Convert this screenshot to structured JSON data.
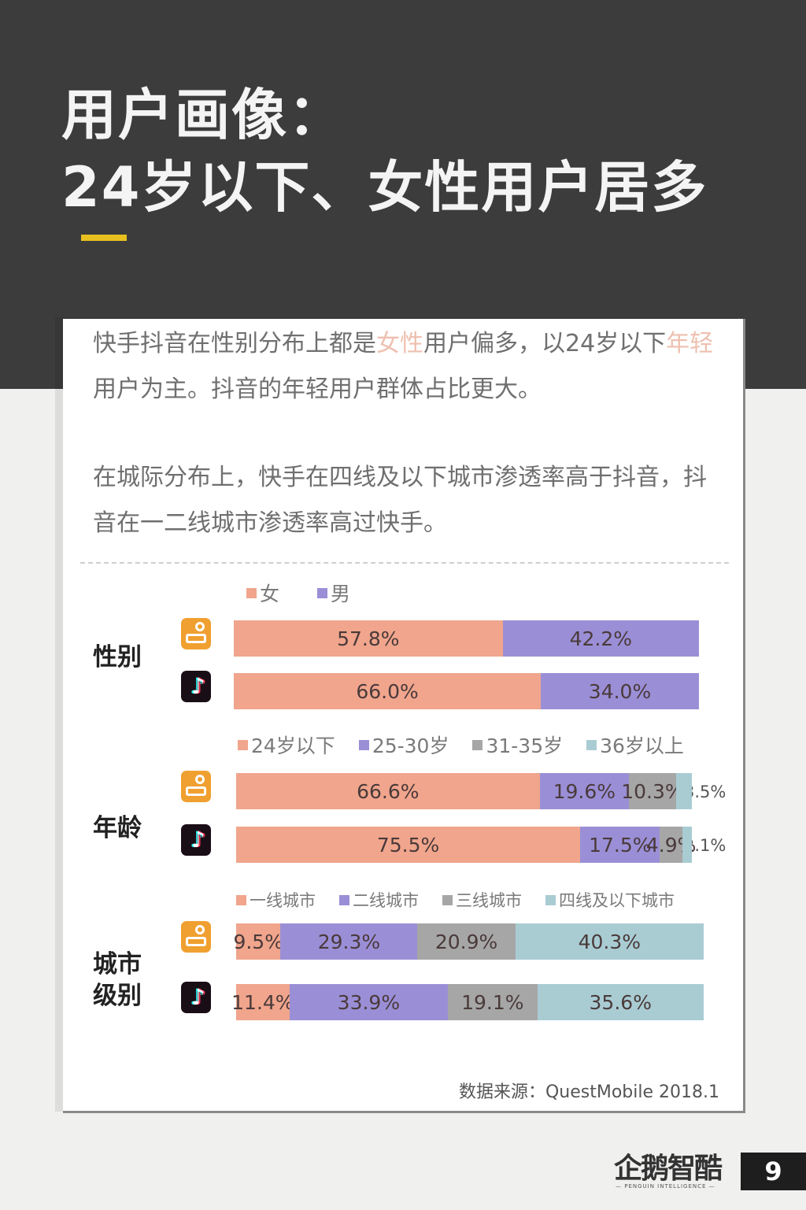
{
  "header": {
    "title_line1": "用户画像：",
    "title_line2": "24岁以下、女性用户居多",
    "accent_color": "#e8c020"
  },
  "summary": {
    "para1": [
      {
        "text": "快手抖音在性别分布上都是",
        "highlight": false
      },
      {
        "text": "女性",
        "highlight": true
      },
      {
        "text": "用户偏多，以24岁以下",
        "highlight": false
      },
      {
        "text": "年轻",
        "highlight": true
      },
      {
        "text": "用户为主。抖音的年轻用户群体占比更大。",
        "highlight": false
      }
    ],
    "para2": "在城际分布上，快手在四线及以下城市渗透率高于抖音，抖音在一二线城市渗透率高过快手。"
  },
  "apps": {
    "kuaishou": "快手",
    "douyin": "抖音"
  },
  "chart_data": [
    {
      "type": "bar",
      "stacked": true,
      "orientation": "horizontal",
      "title": "性别",
      "categories": [
        "快手",
        "抖音"
      ],
      "legend": [
        "女",
        "男"
      ],
      "colors": [
        "#f0a58c",
        "#9a8fd6"
      ],
      "series": [
        {
          "name": "女",
          "values": [
            57.8,
            66.0
          ],
          "labels": [
            "57.8%",
            "66.0%"
          ]
        },
        {
          "name": "男",
          "values": [
            42.2,
            34.0
          ],
          "labels": [
            "42.2%",
            "34.0%"
          ]
        }
      ]
    },
    {
      "type": "bar",
      "stacked": true,
      "orientation": "horizontal",
      "title": "年龄",
      "categories": [
        "快手",
        "抖音"
      ],
      "legend": [
        "24岁以下",
        "25-30岁",
        "31-35岁",
        "36岁以上"
      ],
      "colors": [
        "#f0a58c",
        "#9a8fd6",
        "#a6a6a6",
        "#a9ccd3"
      ],
      "series": [
        {
          "name": "24岁以下",
          "values": [
            66.6,
            75.5
          ],
          "labels": [
            "66.6%",
            "75.5%"
          ]
        },
        {
          "name": "25-30岁",
          "values": [
            19.6,
            17.5
          ],
          "labels": [
            "19.6%",
            "17.5%"
          ]
        },
        {
          "name": "31-35岁",
          "values": [
            10.3,
            4.9
          ],
          "labels": [
            "10.3%",
            "4.9%"
          ]
        },
        {
          "name": "36岁以上",
          "values": [
            3.5,
            2.1
          ],
          "labels": [
            "3.5%",
            "2.1%"
          ]
        }
      ]
    },
    {
      "type": "bar",
      "stacked": true,
      "orientation": "horizontal",
      "title": "城市级别",
      "categories": [
        "快手",
        "抖音"
      ],
      "legend": [
        "一线城市",
        "二线城市",
        "三线城市",
        "四线及以下城市"
      ],
      "colors": [
        "#f0a58c",
        "#9a8fd6",
        "#a6a6a6",
        "#a9ccd3"
      ],
      "series": [
        {
          "name": "一线城市",
          "values": [
            9.5,
            11.4
          ],
          "labels": [
            "9.5%",
            "11.4%"
          ]
        },
        {
          "name": "二线城市",
          "values": [
            29.3,
            33.9
          ],
          "labels": [
            "29.3%",
            "33.9%"
          ]
        },
        {
          "name": "三线城市",
          "values": [
            20.9,
            19.1
          ],
          "labels": [
            "20.9%",
            "19.1%"
          ]
        },
        {
          "name": "四线及以下城市",
          "values": [
            40.3,
            35.6
          ],
          "labels": [
            "40.3%",
            "35.6%"
          ]
        }
      ]
    }
  ],
  "source": "数据来源：QuestMobile 2018.1",
  "footer": {
    "logo": "企鹅智酷",
    "logo_sub": "— PENGUIN INTELLIGENCE —",
    "page_number": "9"
  }
}
